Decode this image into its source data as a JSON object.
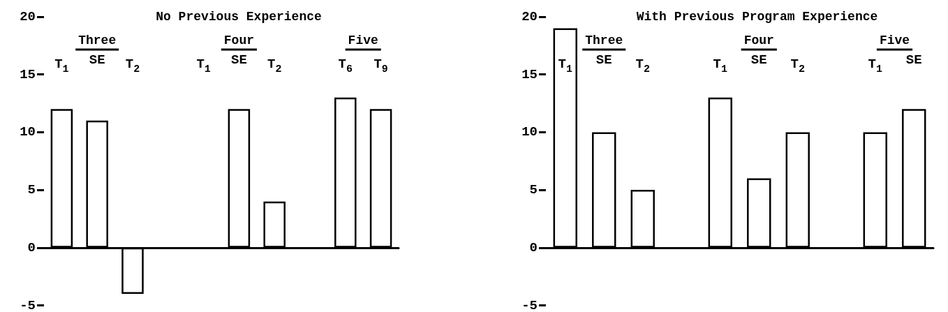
{
  "chart_data": [
    {
      "type": "bar",
      "title": "No Previous Experience",
      "categories": [
        "T$_{1}$",
        "SE",
        "T$_{2}$",
        null,
        "T$_{1}$",
        "SE",
        "T$_{2}$",
        null,
        "T$_{6}$",
        "T$_{9}$"
      ],
      "values": [
        12,
        11,
        -4,
        null,
        null,
        12,
        4,
        null,
        13,
        12
      ],
      "color": "#ffffff",
      "ylim": [
        -5,
        20
      ],
      "yticks": [
        -5,
        0,
        5,
        10,
        15,
        20
      ],
      "annotations": [
        "Three",
        "Four",
        "Five"
      ]
    },
    {
      "type": "bar",
      "title": "With Previous Program Experience",
      "categories": [
        "T$_{1}$",
        "SE",
        "T$_{2}$",
        null,
        "T$_{1}$",
        "SE",
        "T$_{2}$",
        null,
        "T$_{1}$",
        "SE"
      ],
      "values": [
        19,
        10,
        5,
        null,
        13,
        6,
        10,
        null,
        10,
        12
      ],
      "color": "#ffffff",
      "ylim": [
        -5,
        20
      ],
      "yticks": [
        -5,
        0,
        5,
        10,
        15,
        20
      ],
      "annotations": [
        "Three",
        "Four",
        "Five"
      ]
    }
  ]
}
